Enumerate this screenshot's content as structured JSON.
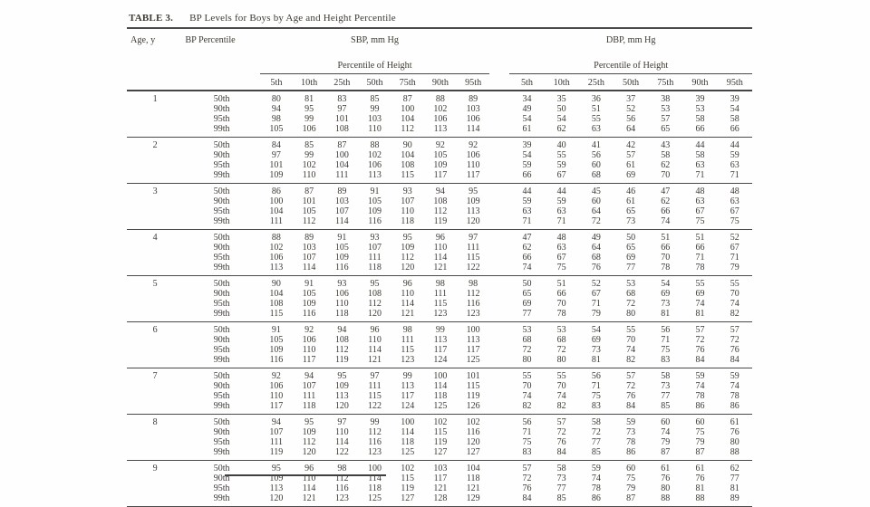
{
  "page": {
    "background": "#fefefe",
    "text_color": "#3c3a33",
    "rule_color": "#4a4a4a"
  },
  "table": {
    "title_label": "TABLE 3.",
    "title": "BP Levels for Boys by Age and Height Percentile",
    "col_age_header": "Age, y",
    "col_bp_header": "BP Percentile",
    "sbp_header": "SBP, mm Hg",
    "dbp_header": "DBP, mm Hg",
    "height_percentile_header": "Percentile of Height",
    "height_cols": [
      "5th",
      "10th",
      "25th",
      "50th",
      "75th",
      "90th",
      "95th"
    ],
    "bp_percentiles": [
      "50th",
      "90th",
      "95th",
      "99th"
    ],
    "ages": [
      {
        "age": "1",
        "sbp": [
          [
            80,
            81,
            83,
            85,
            87,
            88,
            89
          ],
          [
            94,
            95,
            97,
            99,
            100,
            102,
            103
          ],
          [
            98,
            99,
            101,
            103,
            104,
            106,
            106
          ],
          [
            105,
            106,
            108,
            110,
            112,
            113,
            114
          ]
        ],
        "dbp": [
          [
            34,
            35,
            36,
            37,
            38,
            39,
            39
          ],
          [
            49,
            50,
            51,
            52,
            53,
            53,
            54
          ],
          [
            54,
            54,
            55,
            56,
            57,
            58,
            58
          ],
          [
            61,
            62,
            63,
            64,
            65,
            66,
            66
          ]
        ]
      },
      {
        "age": "2",
        "sbp": [
          [
            84,
            85,
            87,
            88,
            90,
            92,
            92
          ],
          [
            97,
            99,
            100,
            102,
            104,
            105,
            106
          ],
          [
            101,
            102,
            104,
            106,
            108,
            109,
            110
          ],
          [
            109,
            110,
            111,
            113,
            115,
            117,
            117
          ]
        ],
        "dbp": [
          [
            39,
            40,
            41,
            42,
            43,
            44,
            44
          ],
          [
            54,
            55,
            56,
            57,
            58,
            58,
            59
          ],
          [
            59,
            59,
            60,
            61,
            62,
            63,
            63
          ],
          [
            66,
            67,
            68,
            69,
            70,
            71,
            71
          ]
        ]
      },
      {
        "age": "3",
        "sbp": [
          [
            86,
            87,
            89,
            91,
            93,
            94,
            95
          ],
          [
            100,
            101,
            103,
            105,
            107,
            108,
            109
          ],
          [
            104,
            105,
            107,
            109,
            110,
            112,
            113
          ],
          [
            111,
            112,
            114,
            116,
            118,
            119,
            120
          ]
        ],
        "dbp": [
          [
            44,
            44,
            45,
            46,
            47,
            48,
            48
          ],
          [
            59,
            59,
            60,
            61,
            62,
            63,
            63
          ],
          [
            63,
            63,
            64,
            65,
            66,
            67,
            67
          ],
          [
            71,
            71,
            72,
            73,
            74,
            75,
            75
          ]
        ]
      },
      {
        "age": "4",
        "sbp": [
          [
            88,
            89,
            91,
            93,
            95,
            96,
            97
          ],
          [
            102,
            103,
            105,
            107,
            109,
            110,
            111
          ],
          [
            106,
            107,
            109,
            111,
            112,
            114,
            115
          ],
          [
            113,
            114,
            116,
            118,
            120,
            121,
            122
          ]
        ],
        "dbp": [
          [
            47,
            48,
            49,
            50,
            51,
            51,
            52
          ],
          [
            62,
            63,
            64,
            65,
            66,
            66,
            67
          ],
          [
            66,
            67,
            68,
            69,
            70,
            71,
            71
          ],
          [
            74,
            75,
            76,
            77,
            78,
            78,
            79
          ]
        ]
      },
      {
        "age": "5",
        "sbp": [
          [
            90,
            91,
            93,
            95,
            96,
            98,
            98
          ],
          [
            104,
            105,
            106,
            108,
            110,
            111,
            112
          ],
          [
            108,
            109,
            110,
            112,
            114,
            115,
            116
          ],
          [
            115,
            116,
            118,
            120,
            121,
            123,
            123
          ]
        ],
        "dbp": [
          [
            50,
            51,
            52,
            53,
            54,
            55,
            55
          ],
          [
            65,
            66,
            67,
            68,
            69,
            69,
            70
          ],
          [
            69,
            70,
            71,
            72,
            73,
            74,
            74
          ],
          [
            77,
            78,
            79,
            80,
            81,
            81,
            82
          ]
        ]
      },
      {
        "age": "6",
        "sbp": [
          [
            91,
            92,
            94,
            96,
            98,
            99,
            100
          ],
          [
            105,
            106,
            108,
            110,
            111,
            113,
            113
          ],
          [
            109,
            110,
            112,
            114,
            115,
            117,
            117
          ],
          [
            116,
            117,
            119,
            121,
            123,
            124,
            125
          ]
        ],
        "dbp": [
          [
            53,
            53,
            54,
            55,
            56,
            57,
            57
          ],
          [
            68,
            68,
            69,
            70,
            71,
            72,
            72
          ],
          [
            72,
            72,
            73,
            74,
            75,
            76,
            76
          ],
          [
            80,
            80,
            81,
            82,
            83,
            84,
            84
          ]
        ]
      },
      {
        "age": "7",
        "sbp": [
          [
            92,
            94,
            95,
            97,
            99,
            100,
            101
          ],
          [
            106,
            107,
            109,
            111,
            113,
            114,
            115
          ],
          [
            110,
            111,
            113,
            115,
            117,
            118,
            119
          ],
          [
            117,
            118,
            120,
            122,
            124,
            125,
            126
          ]
        ],
        "dbp": [
          [
            55,
            55,
            56,
            57,
            58,
            59,
            59
          ],
          [
            70,
            70,
            71,
            72,
            73,
            74,
            74
          ],
          [
            74,
            74,
            75,
            76,
            77,
            78,
            78
          ],
          [
            82,
            82,
            83,
            84,
            85,
            86,
            86
          ]
        ]
      },
      {
        "age": "8",
        "sbp": [
          [
            94,
            95,
            97,
            99,
            100,
            102,
            102
          ],
          [
            107,
            109,
            110,
            112,
            114,
            115,
            116
          ],
          [
            111,
            112,
            114,
            116,
            118,
            119,
            120
          ],
          [
            119,
            120,
            122,
            123,
            125,
            127,
            127
          ]
        ],
        "dbp": [
          [
            56,
            57,
            58,
            59,
            60,
            60,
            61
          ],
          [
            71,
            72,
            72,
            73,
            74,
            75,
            76
          ],
          [
            75,
            76,
            77,
            78,
            79,
            79,
            80
          ],
          [
            83,
            84,
            85,
            86,
            87,
            87,
            88
          ]
        ]
      },
      {
        "age": "9",
        "sbp": [
          [
            95,
            96,
            98,
            100,
            102,
            103,
            104
          ],
          [
            109,
            110,
            112,
            114,
            115,
            117,
            118
          ],
          [
            113,
            114,
            116,
            118,
            119,
            121,
            121
          ],
          [
            120,
            121,
            123,
            125,
            127,
            128,
            129
          ]
        ],
        "dbp": [
          [
            57,
            58,
            59,
            60,
            61,
            61,
            62
          ],
          [
            72,
            73,
            74,
            75,
            76,
            76,
            77
          ],
          [
            76,
            77,
            78,
            79,
            80,
            81,
            81
          ],
          [
            84,
            85,
            86,
            87,
            88,
            88,
            89
          ]
        ]
      }
    ]
  }
}
